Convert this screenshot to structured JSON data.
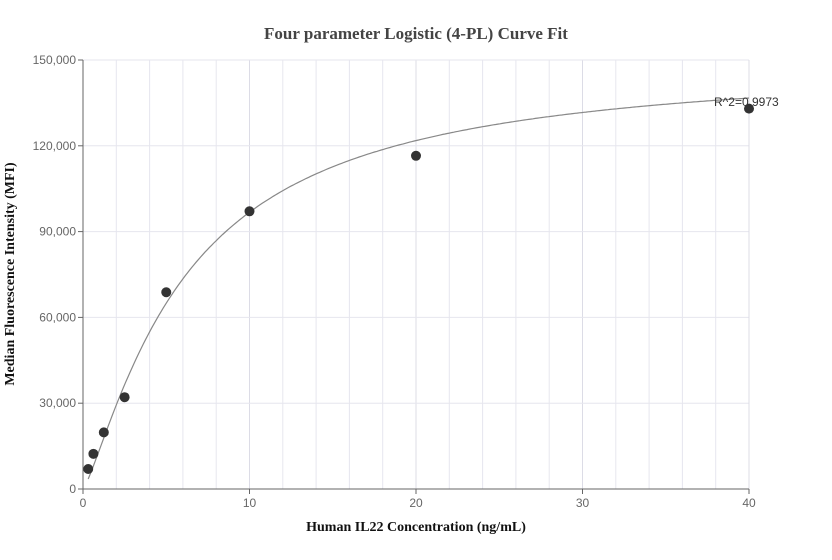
{
  "chart_data": {
    "type": "scatter",
    "title": "Four parameter Logistic (4-PL) Curve Fit",
    "xlabel": "Human IL22 Concentration (ng/mL)",
    "ylabel": "Median Fluorescence Intensity (MFI)",
    "xlim": [
      0,
      40
    ],
    "ylim": [
      0,
      150000
    ],
    "x_ticks": [
      0,
      10,
      20,
      30,
      40
    ],
    "y_ticks": [
      0,
      30000,
      60000,
      90000,
      120000,
      150000
    ],
    "x_tick_labels": [
      "0",
      "10",
      "20",
      "30",
      "40"
    ],
    "y_tick_labels": [
      "0",
      "30,000",
      "60,000",
      "90,000",
      "120,000",
      "150,000"
    ],
    "grid": true,
    "series": [
      {
        "points": [
          {
            "x": 0.3125,
            "y": 7000
          },
          {
            "x": 0.625,
            "y": 12300
          },
          {
            "x": 1.25,
            "y": 19800
          },
          {
            "x": 2.5,
            "y": 32100
          },
          {
            "x": 5,
            "y": 68800
          },
          {
            "x": 10,
            "y": 97100
          },
          {
            "x": 20,
            "y": 116500
          },
          {
            "x": 40,
            "y": 133000
          }
        ]
      }
    ],
    "fit_curve": {
      "model": "4PL",
      "min": 0,
      "max": 150000,
      "ec50": 6.2,
      "hill": 1.25
    },
    "annotation": "R^2=0.9973",
    "marker_color": "#333333",
    "curve_color": "#888888",
    "grid_color": "#e6e6ee"
  }
}
